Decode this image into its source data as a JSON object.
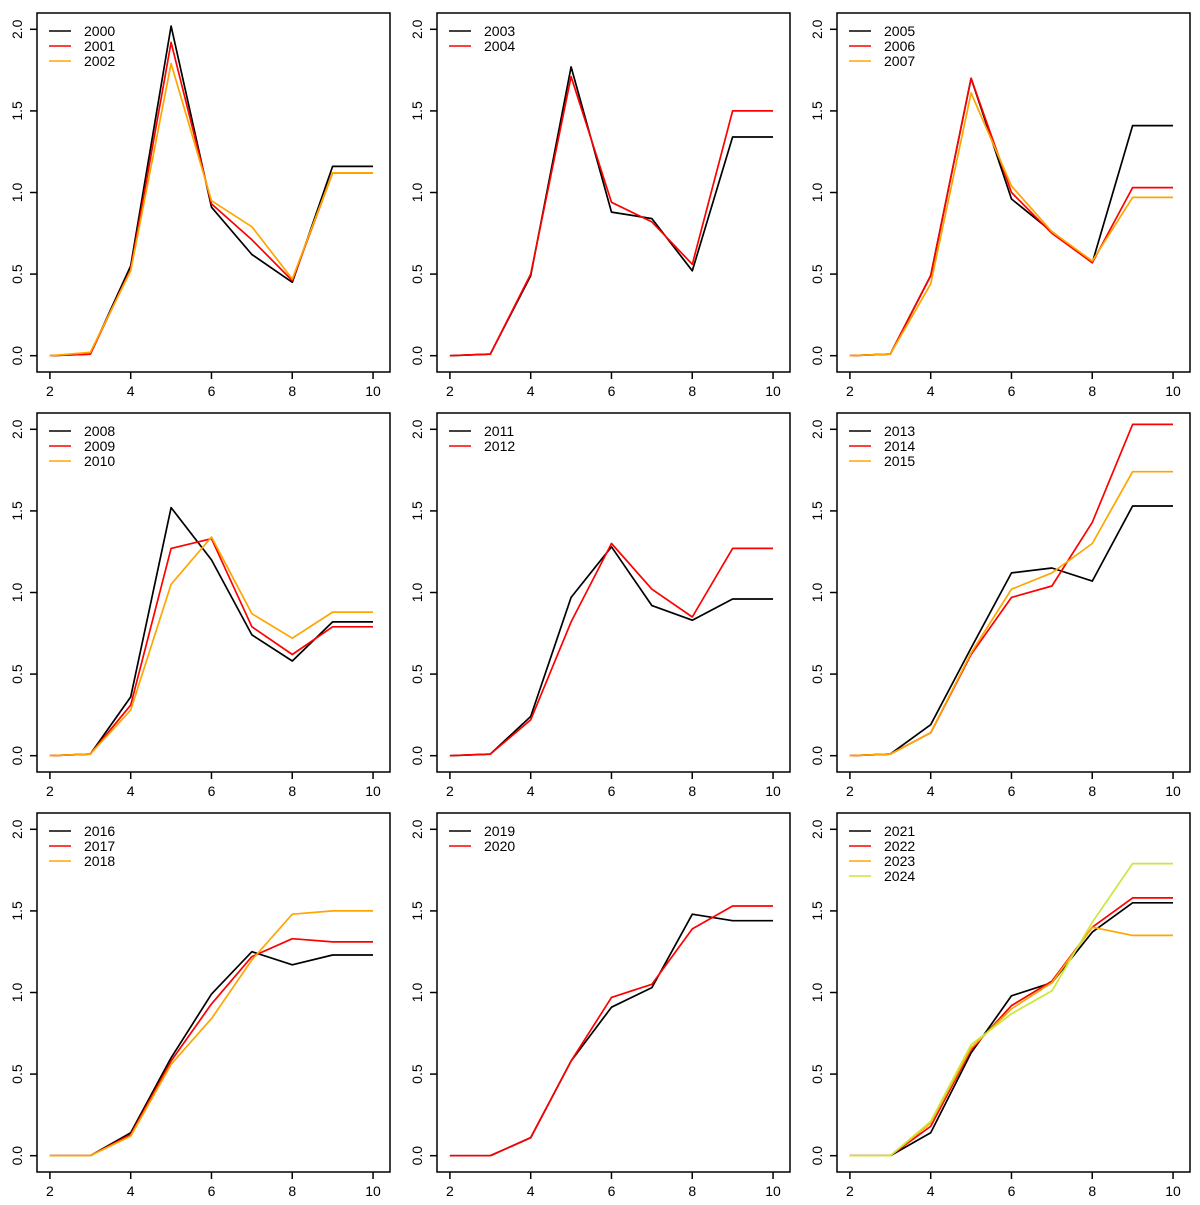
{
  "figure": {
    "background": "#ffffff",
    "grid_rows": 3,
    "grid_cols": 3
  },
  "axis": {
    "x_ticks": [
      "2",
      "4",
      "6",
      "8",
      "10"
    ],
    "x_tick_values": [
      2,
      4,
      6,
      8,
      10
    ],
    "y_ticks": [
      "0.0",
      "0.5",
      "1.0",
      "1.5",
      "2.0"
    ],
    "y_tick_values": [
      0,
      0.5,
      1,
      1.5,
      2
    ],
    "xlim": [
      1.68,
      10.42
    ],
    "ylim": [
      -0.1,
      2.1
    ],
    "grid": "off"
  },
  "palette": {
    "black": "#000000",
    "red": "#FF0000",
    "orange": "#FFA500",
    "yellow_green": "#C9E83B"
  },
  "chart_data": [
    {
      "type": "line",
      "panel": "top-left",
      "legend_position": "topleft",
      "x": [
        2,
        3,
        4,
        5,
        6,
        7,
        8,
        9,
        10
      ],
      "series": [
        {
          "name": "2000",
          "color": "#000000",
          "values": [
            0.0,
            0.01,
            0.55,
            2.02,
            0.91,
            0.62,
            0.45,
            1.16,
            1.16
          ]
        },
        {
          "name": "2001",
          "color": "#FF0000",
          "values": [
            0.0,
            0.01,
            0.53,
            1.92,
            0.93,
            0.71,
            0.46,
            1.12,
            1.12
          ]
        },
        {
          "name": "2002",
          "color": "#FFA500",
          "values": [
            0.0,
            0.02,
            0.52,
            1.79,
            0.95,
            0.79,
            0.47,
            1.12,
            1.12
          ]
        }
      ]
    },
    {
      "type": "line",
      "panel": "top-center",
      "legend_position": "topleft",
      "x": [
        2,
        3,
        4,
        5,
        6,
        7,
        8,
        9,
        10
      ],
      "series": [
        {
          "name": "2003",
          "color": "#000000",
          "values": [
            0.0,
            0.01,
            0.49,
            1.77,
            0.88,
            0.84,
            0.52,
            1.34,
            1.34
          ]
        },
        {
          "name": "2004",
          "color": "#FF0000",
          "values": [
            0.0,
            0.01,
            0.5,
            1.71,
            0.94,
            0.82,
            0.56,
            1.5,
            1.5
          ]
        }
      ]
    },
    {
      "type": "line",
      "panel": "top-right",
      "legend_position": "topleft",
      "x": [
        2,
        3,
        4,
        5,
        6,
        7,
        8,
        9,
        10
      ],
      "series": [
        {
          "name": "2005",
          "color": "#000000",
          "values": [
            0.0,
            0.01,
            0.49,
            1.7,
            0.96,
            0.76,
            0.57,
            1.41,
            1.41
          ]
        },
        {
          "name": "2006",
          "color": "#FF0000",
          "values": [
            0.0,
            0.01,
            0.49,
            1.7,
            1.0,
            0.75,
            0.57,
            1.03,
            1.03
          ]
        },
        {
          "name": "2007",
          "color": "#FFA500",
          "values": [
            0.0,
            0.01,
            0.44,
            1.61,
            1.04,
            0.76,
            0.58,
            0.97,
            0.97
          ]
        }
      ]
    },
    {
      "type": "line",
      "panel": "middle-left",
      "legend_position": "topleft",
      "x": [
        2,
        3,
        4,
        5,
        6,
        7,
        8,
        9,
        10
      ],
      "series": [
        {
          "name": "2008",
          "color": "#000000",
          "values": [
            0.0,
            0.01,
            0.36,
            1.52,
            1.2,
            0.74,
            0.58,
            0.82,
            0.82
          ]
        },
        {
          "name": "2009",
          "color": "#FF0000",
          "values": [
            0.0,
            0.01,
            0.31,
            1.27,
            1.33,
            0.79,
            0.62,
            0.79,
            0.79
          ]
        },
        {
          "name": "2010",
          "color": "#FFA500",
          "values": [
            0.0,
            0.01,
            0.28,
            1.05,
            1.34,
            0.87,
            0.72,
            0.88,
            0.88
          ]
        }
      ]
    },
    {
      "type": "line",
      "panel": "middle-center",
      "legend_position": "topleft",
      "x": [
        2,
        3,
        4,
        5,
        6,
        7,
        8,
        9,
        10
      ],
      "series": [
        {
          "name": "2011",
          "color": "#000000",
          "values": [
            0.0,
            0.01,
            0.24,
            0.97,
            1.28,
            0.92,
            0.83,
            0.96,
            0.96
          ]
        },
        {
          "name": "2012",
          "color": "#FF0000",
          "values": [
            0.0,
            0.01,
            0.22,
            0.82,
            1.3,
            1.02,
            0.85,
            1.27,
            1.27
          ]
        }
      ]
    },
    {
      "type": "line",
      "panel": "middle-right",
      "legend_position": "topleft",
      "x": [
        2,
        3,
        4,
        5,
        6,
        7,
        8,
        9,
        10
      ],
      "series": [
        {
          "name": "2013",
          "color": "#000000",
          "values": [
            0.0,
            0.01,
            0.19,
            0.66,
            1.12,
            1.15,
            1.07,
            1.53,
            1.53
          ]
        },
        {
          "name": "2014",
          "color": "#FF0000",
          "values": [
            0.0,
            0.01,
            0.14,
            0.62,
            0.97,
            1.04,
            1.43,
            2.03,
            2.03
          ]
        },
        {
          "name": "2015",
          "color": "#FFA500",
          "values": [
            0.0,
            0.01,
            0.14,
            0.63,
            1.02,
            1.12,
            1.3,
            1.74,
            1.74
          ]
        }
      ]
    },
    {
      "type": "line",
      "panel": "bottom-left",
      "legend_position": "topleft",
      "x": [
        2,
        3,
        4,
        5,
        6,
        7,
        8,
        9,
        10
      ],
      "series": [
        {
          "name": "2016",
          "color": "#000000",
          "values": [
            0.0,
            0.0,
            0.14,
            0.6,
            0.99,
            1.25,
            1.17,
            1.23,
            1.23
          ]
        },
        {
          "name": "2017",
          "color": "#FF0000",
          "values": [
            0.0,
            0.0,
            0.13,
            0.58,
            0.93,
            1.22,
            1.33,
            1.31,
            1.31
          ]
        },
        {
          "name": "2018",
          "color": "#FFA500",
          "values": [
            0.0,
            0.0,
            0.12,
            0.56,
            0.84,
            1.2,
            1.48,
            1.5,
            1.5
          ]
        }
      ]
    },
    {
      "type": "line",
      "panel": "bottom-center",
      "legend_position": "topleft",
      "x": [
        2,
        3,
        4,
        5,
        6,
        7,
        8,
        9,
        10
      ],
      "series": [
        {
          "name": "2019",
          "color": "#000000",
          "values": [
            0.0,
            0.0,
            0.11,
            0.58,
            0.91,
            1.03,
            1.48,
            1.44,
            1.44
          ]
        },
        {
          "name": "2020",
          "color": "#FF0000",
          "values": [
            0.0,
            0.0,
            0.11,
            0.58,
            0.97,
            1.05,
            1.39,
            1.53,
            1.53
          ]
        }
      ]
    },
    {
      "type": "line",
      "panel": "bottom-right",
      "legend_position": "topleft",
      "x": [
        2,
        3,
        4,
        5,
        6,
        7,
        8,
        9,
        10
      ],
      "series": [
        {
          "name": "2021",
          "color": "#000000",
          "values": [
            0.0,
            0.0,
            0.14,
            0.63,
            0.98,
            1.06,
            1.37,
            1.55,
            1.55
          ]
        },
        {
          "name": "2022",
          "color": "#FF0000",
          "values": [
            0.0,
            0.0,
            0.18,
            0.65,
            0.92,
            1.07,
            1.4,
            1.58,
            1.58
          ]
        },
        {
          "name": "2023",
          "color": "#FFA500",
          "values": [
            0.0,
            0.0,
            0.2,
            0.66,
            0.9,
            1.06,
            1.4,
            1.35,
            1.35
          ]
        },
        {
          "name": "2024",
          "color": "#C9E83B",
          "values": [
            0.0,
            0.0,
            0.21,
            0.68,
            0.87,
            1.01,
            1.43,
            1.79,
            1.79
          ]
        }
      ]
    }
  ]
}
